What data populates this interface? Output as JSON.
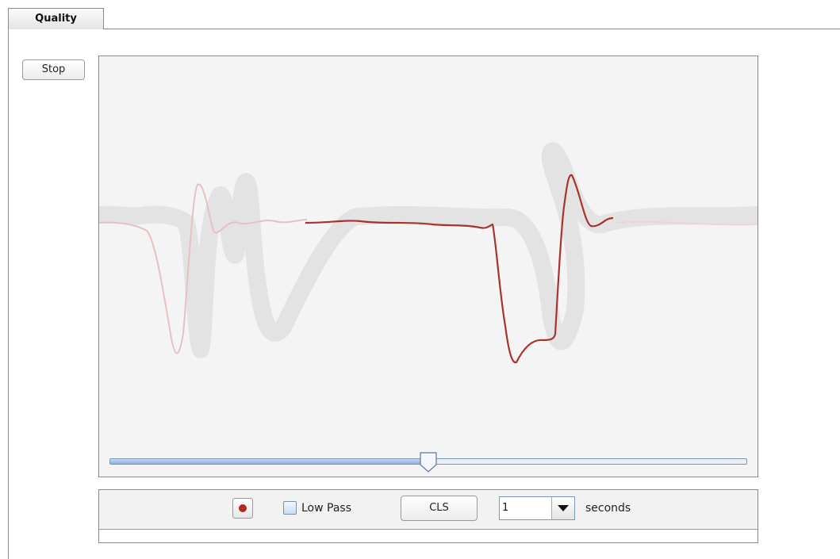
{
  "tab": {
    "label": "Quality"
  },
  "stop_button": {
    "label": "Stop"
  },
  "controls": {
    "low_pass_label": "Low Pass",
    "low_pass_checked": false,
    "cls_label": "CLS",
    "duration_value": "1",
    "duration_unit": "seconds",
    "record_color": "#b02a20"
  },
  "slider": {
    "position_fraction": 0.5
  },
  "plot": {
    "background": "#f4f4f4",
    "trace_color": "#a8332e",
    "ghost_color": "#e2e2e2",
    "faded_trace_color": "#e9c4c4"
  },
  "icons": [
    "record-icon",
    "checkbox-icon",
    "chevron-down-icon",
    "slider-thumb-icon"
  ]
}
